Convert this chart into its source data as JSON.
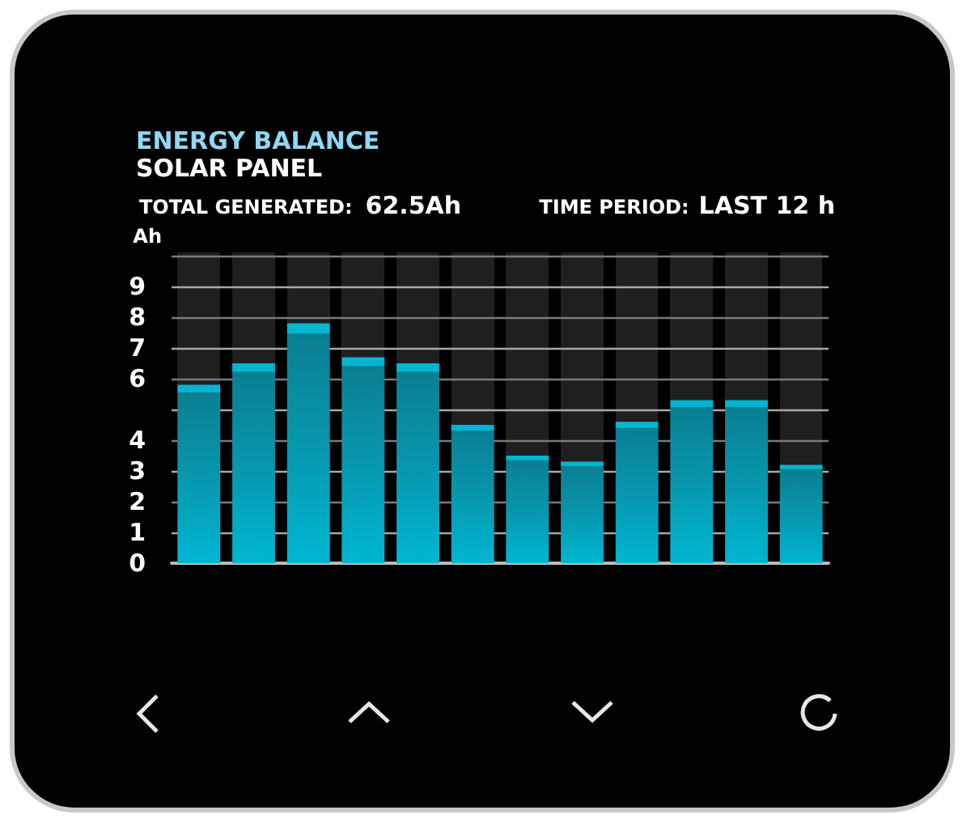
{
  "chart_data": {
    "type": "bar",
    "title": "ENERGY BALANCE",
    "subtitle": "SOLAR PANEL",
    "ylabel": "Ah",
    "annotations": [
      "TOTAL GENERATED:",
      "62.5Ah",
      "TIME PERIOD:",
      "LAST 12 h"
    ],
    "categories": [
      null,
      null,
      null,
      null,
      null,
      null,
      null,
      null,
      null,
      null,
      null,
      null
    ],
    "values": [
      5.8,
      6.5,
      7.8,
      6.7,
      6.5,
      4.5,
      3.5,
      3.3,
      4.6,
      5.3,
      5.3,
      3.2
    ],
    "color": "#00b6d2",
    "ylim": [
      0,
      10
    ],
    "yticks": [
      0,
      1,
      2,
      3,
      4,
      {
        "value": 5,
        "label": null
      },
      6,
      7,
      8,
      9,
      {
        "value": 10,
        "label": null
      }
    ],
    "grid": "y"
  }
}
